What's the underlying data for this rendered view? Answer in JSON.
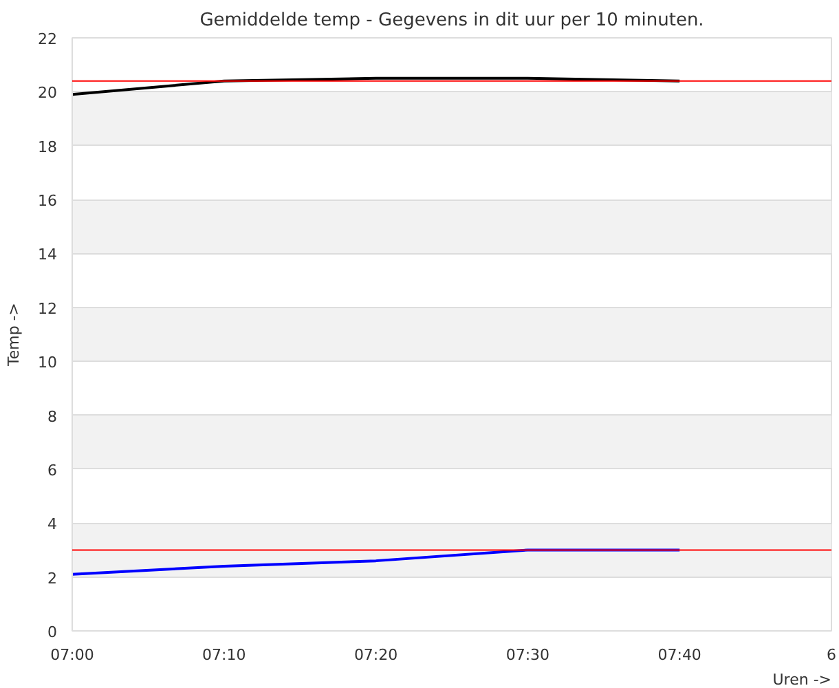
{
  "chart_data": {
    "type": "line",
    "title": "Gemiddelde temp - Gegevens in dit uur per 10 minuten.",
    "xlabel": "Uren ->",
    "ylabel": "Temp ->",
    "categories": [
      "07:00",
      "07:10",
      "07:20",
      "07:30",
      "07:40",
      "6"
    ],
    "series": [
      {
        "color": "#000000",
        "values": [
          19.9,
          20.4,
          20.5,
          20.5,
          20.4,
          null
        ]
      },
      {
        "color": "#0000ff",
        "values": [
          2.1,
          2.4,
          2.6,
          3.0,
          3.0,
          null
        ]
      }
    ],
    "ylim": [
      0,
      22
    ],
    "yticks": [
      0,
      2,
      4,
      6,
      8,
      10,
      12,
      14,
      16,
      18,
      20,
      22
    ],
    "grid": "y",
    "marker": "none",
    "line_style": "solid",
    "ref_lines": [
      {
        "axis": "y",
        "value": 20.4,
        "color": "#ff0000"
      },
      {
        "axis": "y",
        "value": 3.0,
        "color": "#ff0000"
      }
    ]
  }
}
